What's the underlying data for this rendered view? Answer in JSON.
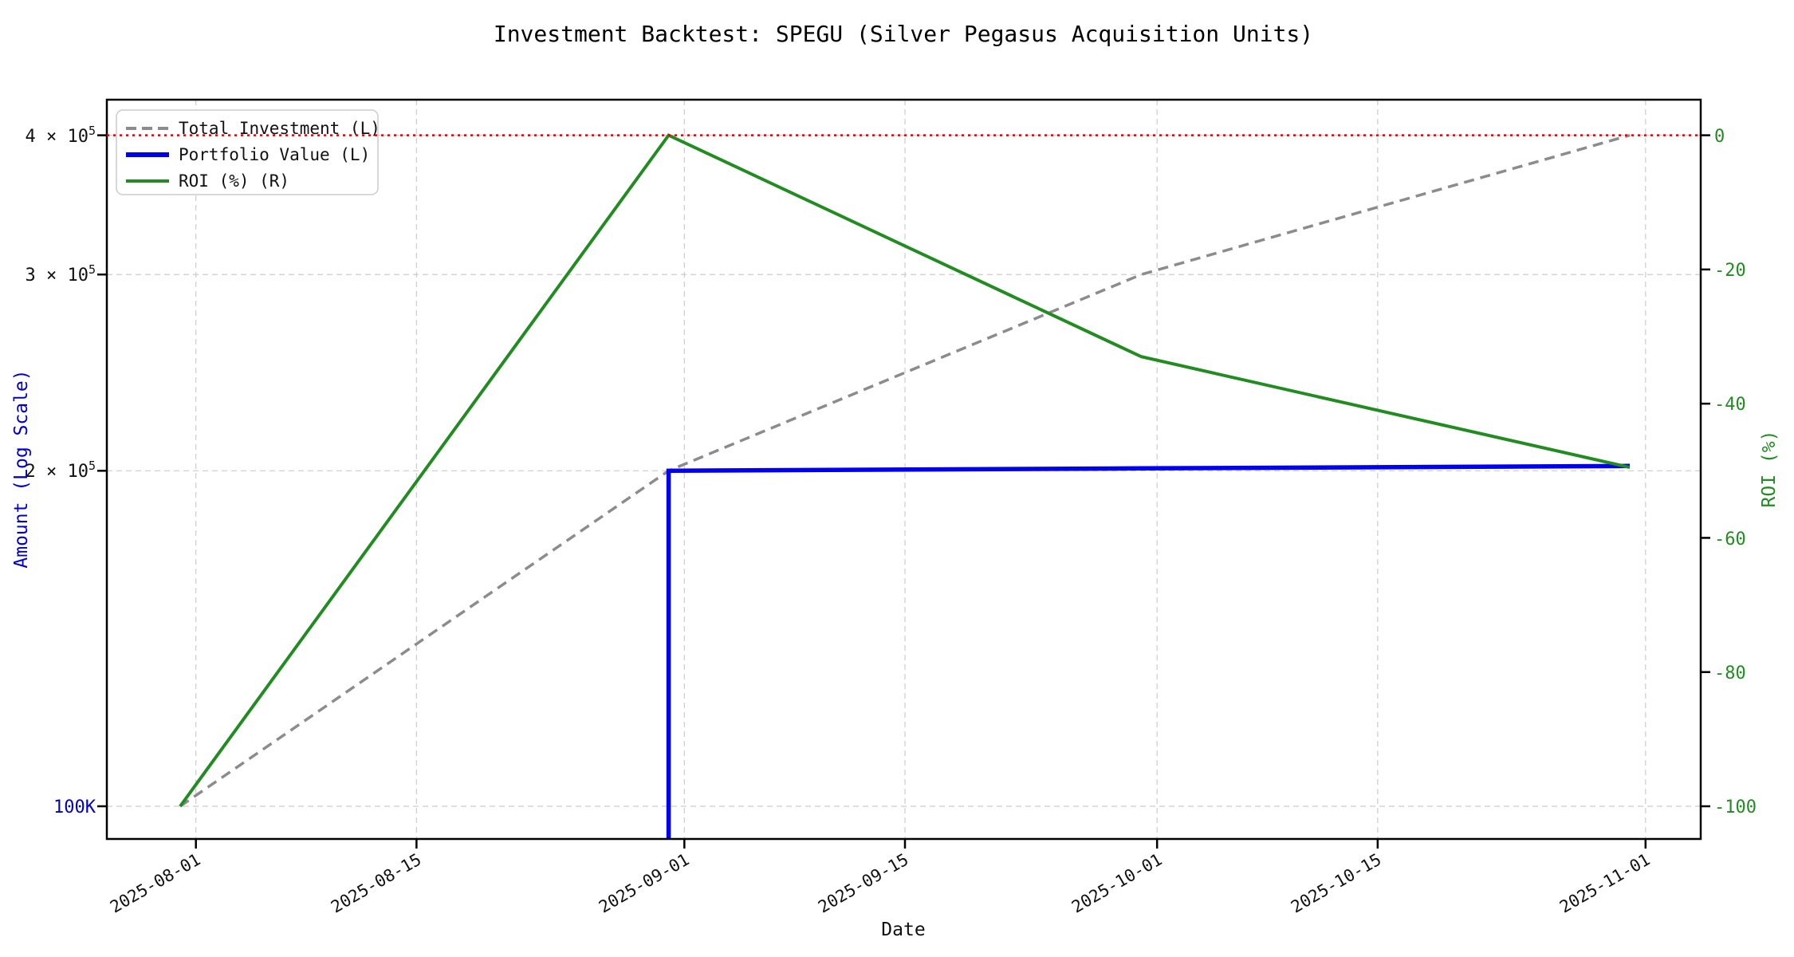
{
  "title": "Investment Backtest: SPEGU (Silver Pegasus Acquisition Units)",
  "axes": {
    "x": {
      "label": "Date",
      "tick_labels": [
        "2025-08-01",
        "2025-08-15",
        "2025-09-01",
        "2025-09-15",
        "2025-10-01",
        "2025-10-15",
        "2025-11-01"
      ]
    },
    "y_left": {
      "label": "Amount (Log Scale)",
      "color": "#0000cc",
      "tick_labels": [
        {
          "main": "100K"
        },
        {
          "main": "2 × 10",
          "sup": "5"
        },
        {
          "main": "3 × 10",
          "sup": "5"
        },
        {
          "main": "4 × 10",
          "sup": "5"
        }
      ]
    },
    "y_right": {
      "label": "ROI (%)",
      "color": "#228B22",
      "tick_labels": [
        "0",
        "-20",
        "-40",
        "-60",
        "-80",
        "-100"
      ]
    }
  },
  "legend": {
    "items": [
      {
        "label": "Total Investment (L)",
        "color": "#8c8c8c",
        "style": "dashed"
      },
      {
        "label": "Portfolio Value (L)",
        "color": "#0000ee",
        "style": "solid"
      },
      {
        "label": "ROI (%) (R)",
        "color": "#228B22",
        "style": "solid"
      }
    ]
  },
  "chart_data": {
    "type": "line",
    "title": "Investment Backtest: SPEGU (Silver Pegasus Acquisition Units)",
    "xlabel": "Date",
    "ylabel_left": "Amount (Log Scale)",
    "ylabel_right": "ROI (%)",
    "x_dates": [
      "2025-07-31",
      "2025-08-31",
      "2025-09-30",
      "2025-10-31"
    ],
    "x_ticks": [
      "2025-08-01",
      "2025-08-15",
      "2025-09-01",
      "2025-09-15",
      "2025-10-01",
      "2025-10-15",
      "2025-11-01"
    ],
    "series": [
      {
        "name": "Total Investment (L)",
        "axis": "left",
        "color": "#8c8c8c",
        "style": "dashed",
        "width": 3.5,
        "values": [
          100000,
          200000,
          300000,
          400000
        ]
      },
      {
        "name": "Portfolio Value (L)",
        "axis": "left",
        "color": "#0000ee",
        "style": "solid",
        "width": 5.5,
        "values": [
          null,
          200000,
          201000,
          202000
        ]
      },
      {
        "name": "ROI (%) (R)",
        "axis": "right",
        "color": "#228B22",
        "style": "solid",
        "width": 4,
        "values": [
          -100,
          0,
          -33,
          -49.5
        ]
      }
    ],
    "y_left_axis": {
      "scale": "log",
      "ticks": [
        100000,
        200000,
        300000,
        400000
      ],
      "range": [
        93500,
        432000
      ]
    },
    "y_right_axis": {
      "scale": "linear",
      "ticks": [
        0,
        -20,
        -40,
        -60,
        -80,
        -100
      ],
      "range": [
        -105,
        5.6
      ]
    },
    "ref_line": {
      "axis": "right",
      "value": 0,
      "color": "#e00000",
      "style": "dotted"
    },
    "grid": true,
    "legend_position": "upper-left"
  }
}
